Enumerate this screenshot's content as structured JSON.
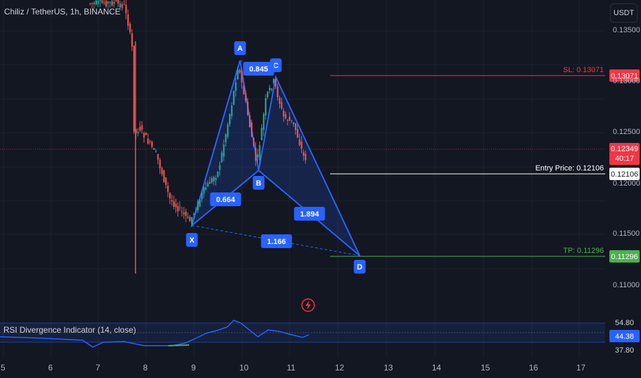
{
  "title": "Chiliz / TetherUS, 1h, BINANCE",
  "currency_button": "USDT",
  "price_axis": [
    "0.13500",
    "0.13000",
    "0.12500",
    "0.12000",
    "0.11500",
    "0.11000"
  ],
  "time_axis": [
    "5",
    "6",
    "7",
    "8",
    "9",
    "10",
    "11",
    "12",
    "13",
    "14",
    "15",
    "16",
    "17"
  ],
  "colors": {
    "up": "#26a69a",
    "down": "#ef5350",
    "pattern": "#2962ff",
    "sl": "#f23645",
    "tp": "#4caf50",
    "entry": "#ffffff",
    "bg": "#131722"
  },
  "labels": {
    "sl_text": "SL: 0.13071",
    "sl_badge": "0.13071",
    "entry_text": "Entry Price: 0.12106",
    "entry_badge": "0.12106",
    "tp_text": "TP: 0.11296",
    "tp_badge": "0.11296",
    "current_price": "0.12349",
    "countdown": "40:17"
  },
  "pattern_points": {
    "X": "X",
    "A": "A",
    "B": "B",
    "C": "C",
    "D": "D"
  },
  "ratios": {
    "xab": "0.664",
    "abc": "0.845",
    "bcd": "1.894",
    "xad": "1.166"
  },
  "rsi": {
    "title": "RSI Divergence Indicator (14, close)",
    "upper": "54.80",
    "current": "44.38",
    "lower": "37.80"
  },
  "alert_icon": "lightning-icon"
}
